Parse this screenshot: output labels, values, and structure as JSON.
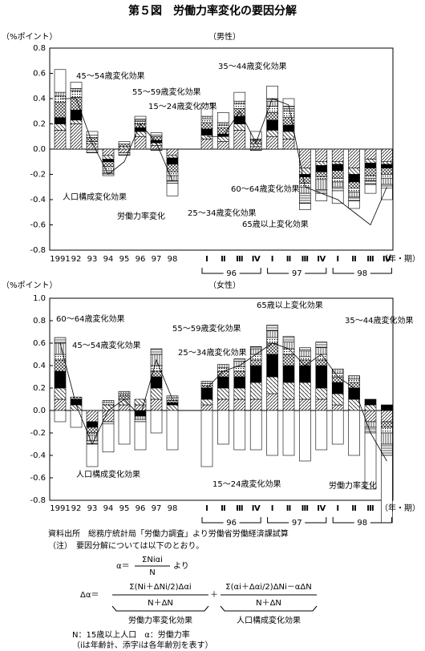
{
  "title": "第５図　労働力率変化の要因分解",
  "chart_data": [
    {
      "type": "bar",
      "subtitle": "（男性）",
      "y_label": "（%ポイント）",
      "x_label": "（年・期）",
      "categories": [
        "1991",
        "92",
        "93",
        "94",
        "95",
        "96",
        "97",
        "98",
        "Ⅰ",
        "Ⅱ",
        "Ⅲ",
        "Ⅳ",
        "Ⅰ",
        "Ⅱ",
        "Ⅲ",
        "Ⅳ",
        "Ⅰ",
        "Ⅱ",
        "Ⅲ",
        "Ⅳ"
      ],
      "x_groups": [
        "96",
        "97",
        "98"
      ],
      "ylim": [
        -0.8,
        0.8
      ],
      "yticks": [
        -0.8,
        -0.6,
        -0.4,
        -0.2,
        {
          "value": 0,
          "label": "0.0"
        },
        0.2,
        0.4,
        0.6,
        0.8
      ],
      "series": [
        {
          "name": "15～24歳変化効果",
          "pattern": "diag",
          "values": [
            0.15,
            0.2,
            0.04,
            -0.05,
            -0.03,
            0.1,
            0.03,
            -0.05,
            0.08,
            0.06,
            0.15,
            0.02,
            0.1,
            0.08,
            -0.15,
            -0.1,
            -0.1,
            -0.15,
            -0.08,
            -0.1
          ]
        },
        {
          "name": "25～34歳変化効果",
          "pattern": "back",
          "values": [
            0.05,
            0.03,
            0.02,
            -0.03,
            0.02,
            0.04,
            0.02,
            -0.02,
            0.03,
            0.04,
            0.05,
            0.02,
            0.05,
            0.06,
            -0.05,
            -0.03,
            -0.02,
            -0.05,
            -0.03,
            -0.02
          ]
        },
        {
          "name": "35～44歳変化効果",
          "pattern": "solid",
          "values": [
            0.05,
            0.08,
            0,
            -0.02,
            0,
            0.03,
            0.02,
            -0.05,
            0.05,
            0.02,
            0.06,
            0,
            0.08,
            0.05,
            -0.02,
            -0.05,
            -0.05,
            -0.06,
            -0.04,
            -0.03
          ]
        },
        {
          "name": "45～54歳変化効果",
          "pattern": "cross",
          "values": [
            0.12,
            0.1,
            0.03,
            -0.04,
            0.02,
            0.03,
            0.03,
            -0.06,
            0.05,
            0.05,
            0.06,
            0.03,
            0.06,
            0.06,
            -0.05,
            -0.04,
            -0.06,
            -0.05,
            -0.06,
            -0.05
          ]
        },
        {
          "name": "55～59歳変化効果",
          "pattern": "dots",
          "values": [
            0.05,
            0.05,
            0.02,
            -0.03,
            0,
            0.02,
            0.01,
            -0.03,
            0.03,
            0.02,
            0.04,
            0.01,
            0.05,
            0.05,
            -0.03,
            -0.02,
            -0.03,
            -0.03,
            -0.02,
            -0.03
          ]
        },
        {
          "name": "60～64歳変化効果",
          "pattern": "vert",
          "values": [
            0.03,
            0.02,
            0,
            -0.02,
            0,
            0.01,
            0,
            -0.04,
            0.02,
            0.02,
            0.02,
            0,
            0.04,
            0.02,
            -0.05,
            -0.08,
            -0.04,
            -0.04,
            -0.02,
            -0.05
          ]
        },
        {
          "name": "65歳以上変化効果",
          "pattern": "horiz",
          "values": [
            0,
            0,
            -0.03,
            -0.02,
            -0.02,
            0.01,
            -0.01,
            -0.02,
            0,
            0,
            0,
            -0.01,
            0.02,
            0.02,
            -0.08,
            -0.03,
            -0.03,
            -0.03,
            -0.03,
            -0.03
          ]
        },
        {
          "name": "人口構成変化効果",
          "pattern": "white",
          "values": [
            0.18,
            0.05,
            0.03,
            0,
            0.02,
            0.02,
            0.02,
            -0.1,
            0.1,
            0.08,
            0.07,
            0.06,
            0.1,
            0.06,
            -0.05,
            -0.06,
            -0.1,
            -0.06,
            -0.07,
            -0.09
          ]
        }
      ],
      "line": {
        "name": "労働力率変化",
        "values": [
          0.4,
          0.4,
          0.05,
          -0.2,
          -0.1,
          0.2,
          0.05,
          -0.25,
          0.1,
          0.1,
          0.3,
          0.05,
          0.4,
          0.35,
          -0.3,
          -0.35,
          -0.4,
          -0.5,
          -0.6,
          -0.3
        ]
      }
    },
    {
      "type": "bar",
      "subtitle": "（女性）",
      "y_label": "（%ポイント）",
      "x_label": "（年・期）",
      "categories": [
        "1991",
        "92",
        "93",
        "94",
        "95",
        "96",
        "97",
        "98",
        "Ⅰ",
        "Ⅱ",
        "Ⅲ",
        "Ⅳ",
        "Ⅰ",
        "Ⅱ",
        "Ⅲ",
        "Ⅳ",
        "Ⅰ",
        "Ⅱ",
        "Ⅲ",
        "Ⅳ"
      ],
      "x_groups": [
        "96",
        "97",
        "98"
      ],
      "ylim": [
        -0.8,
        1.0
      ],
      "yticks": [
        -0.8,
        -0.6,
        -0.4,
        -0.2,
        {
          "value": 0,
          "label": "0.0"
        },
        0.2,
        0.4,
        0.6,
        0.8,
        {
          "value": 1,
          "label": "1.0"
        }
      ],
      "series": [
        {
          "name": "15～24歳変化効果",
          "pattern": "diag",
          "values": [
            0.1,
            0,
            -0.1,
            -0.1,
            0.05,
            0.05,
            0.1,
            0,
            0.05,
            0.1,
            0.1,
            0.1,
            0.15,
            0.1,
            0.1,
            0.1,
            0.05,
            0,
            -0.1,
            -0.1
          ]
        },
        {
          "name": "25～34歳変化効果",
          "pattern": "back",
          "values": [
            0.1,
            0.05,
            0,
            0.05,
            0.05,
            0.05,
            0.1,
            0.05,
            0.05,
            0.1,
            0.1,
            0.15,
            0.15,
            0.15,
            0.15,
            0.1,
            0.1,
            0.1,
            0.05,
            0
          ]
        },
        {
          "name": "35～44歳変化効果",
          "pattern": "solid",
          "values": [
            0.15,
            0.05,
            -0.05,
            0,
            0,
            -0.05,
            0.1,
            0.02,
            0.1,
            0.1,
            0.1,
            0.15,
            0.2,
            0.15,
            0.15,
            0.2,
            0.1,
            0.1,
            0.05,
            0.05
          ]
        },
        {
          "name": "45～54歳変化効果",
          "pattern": "cross",
          "values": [
            0.1,
            0.02,
            -0.05,
            0,
            0.03,
            0,
            0.05,
            0.02,
            0.02,
            0.05,
            0.05,
            0.05,
            0.1,
            0.1,
            0.05,
            0.05,
            0.05,
            0.05,
            0,
            -0.05
          ]
        },
        {
          "name": "55～59歳変化効果",
          "pattern": "dots",
          "values": [
            0.05,
            0,
            -0.02,
            0.02,
            0.02,
            0,
            0.05,
            0.02,
            0.02,
            0.03,
            0.04,
            0.05,
            0.05,
            0.05,
            0.03,
            0.05,
            0.03,
            0.03,
            0,
            -0.05
          ]
        },
        {
          "name": "60～64歳変化効果",
          "pattern": "vert",
          "values": [
            0.1,
            0,
            -0.05,
            0.02,
            0.02,
            -0.03,
            0.1,
            0.02,
            0.02,
            0.03,
            0.05,
            0.05,
            0.06,
            0.06,
            0.05,
            0.06,
            0.04,
            0.03,
            -0.05,
            -0.1
          ]
        },
        {
          "name": "65歳以上変化効果",
          "pattern": "horiz",
          "values": [
            0.05,
            0,
            -0.03,
            -0.02,
            0,
            -0.02,
            0.05,
            0,
            0,
            0,
            0.02,
            0.02,
            0.05,
            0.05,
            0.03,
            0.05,
            0,
            0,
            -0.05,
            -0.1
          ]
        },
        {
          "name": "人口構成変化効果",
          "pattern": "white",
          "values": [
            -0.1,
            -0.15,
            -0.2,
            -0.25,
            -0.3,
            -0.25,
            -0.2,
            -0.35,
            -0.5,
            -0.3,
            -0.35,
            -0.35,
            -0.4,
            -0.4,
            -0.45,
            -0.35,
            -0.3,
            -0.4,
            -0.5,
            -0.6
          ]
        }
      ],
      "line": {
        "name": "労働力率変化",
        "values": [
          0.6,
          0.05,
          -0.3,
          0,
          0.1,
          -0.05,
          0.45,
          0.1,
          0.2,
          0.35,
          0.4,
          0.5,
          0.6,
          0.55,
          0.4,
          0.5,
          0.3,
          0.2,
          -0.2,
          -0.45
        ]
      }
    }
  ],
  "notes": {
    "source": "資料出所　総務庁統計局「労働力調査」より労働省労働経済課試算",
    "note": "（注）　要因分解については以下のとおり。",
    "f1_lhs": "α＝",
    "f1_num": "ΣNiαi",
    "f1_den": "N",
    "f1_suffix": "より",
    "f2_lhs": "Δα＝",
    "f2_num1": "Σ(Ni＋ΔNi/2)Δαi",
    "f2_den1": "N＋ΔN",
    "f2_plus": "＋",
    "f2_num2": "Σ(αi＋Δαi/2)ΔNi－αΔN",
    "f2_den2": "N＋ΔN",
    "f2_label1": "労働力率変化効果",
    "f2_label2": "人口構成変化効果",
    "def1": "N：15歳以上人口　α：労働力率",
    "def2": "（iは年齢計、添字iは各年齢別を表す）"
  }
}
